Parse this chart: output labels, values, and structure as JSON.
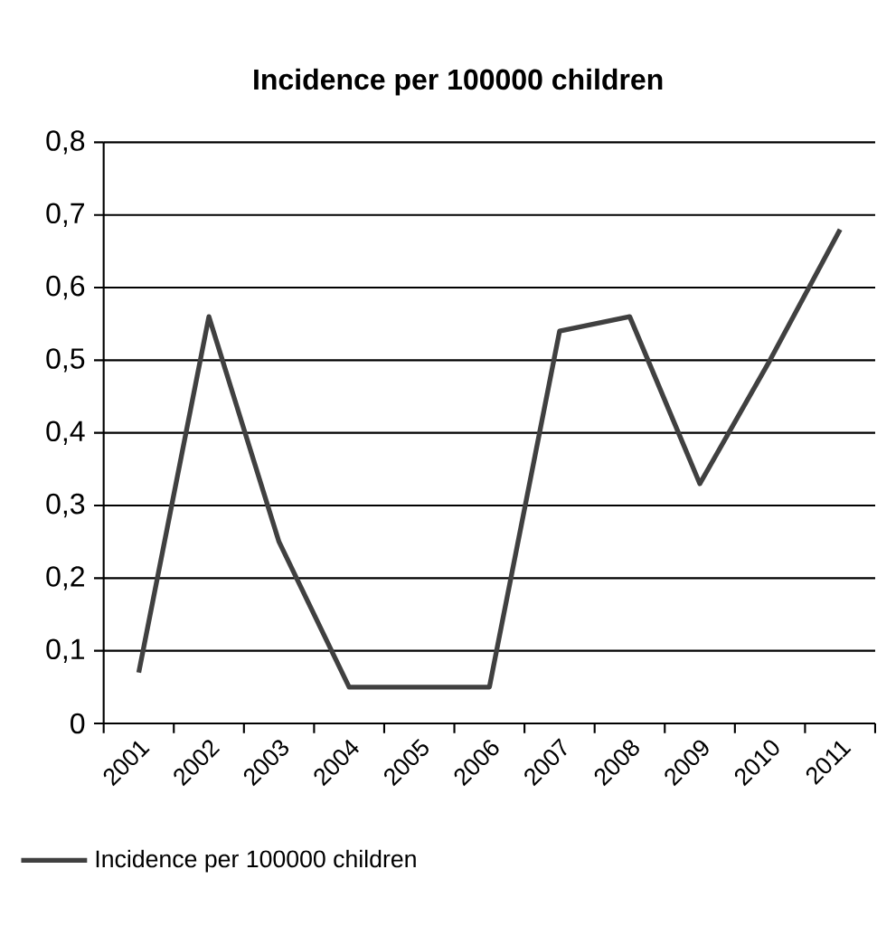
{
  "chart_data": {
    "type": "line",
    "title": "Incidence per 100000 children",
    "categories": [
      "2001",
      "2002",
      "2003",
      "2004",
      "2005",
      "2006",
      "2007",
      "2008",
      "2009",
      "2010",
      "2011"
    ],
    "series": [
      {
        "name": "Incidence per 100000 children",
        "color": "#404040",
        "values": [
          0.07,
          0.56,
          0.25,
          0.05,
          0.05,
          0.05,
          0.54,
          0.56,
          0.33,
          0.5,
          0.68
        ]
      }
    ],
    "ylim": [
      0,
      0.8
    ],
    "yticks": [
      0,
      {
        "value": 0.1,
        "label": "0,1"
      },
      {
        "value": 0.2,
        "label": "0,2"
      },
      {
        "value": 0.3,
        "label": "0,3"
      },
      {
        "value": 0.4,
        "label": "0,4"
      },
      {
        "value": 0.5,
        "label": "0,5"
      },
      {
        "value": 0.6,
        "label": "0,6"
      },
      {
        "value": 0.7,
        "label": "0,7"
      },
      {
        "value": 0.8,
        "label": "0,8"
      }
    ],
    "grid": "y",
    "legend": "bottom",
    "marker": "none",
    "line_style": "solid"
  }
}
